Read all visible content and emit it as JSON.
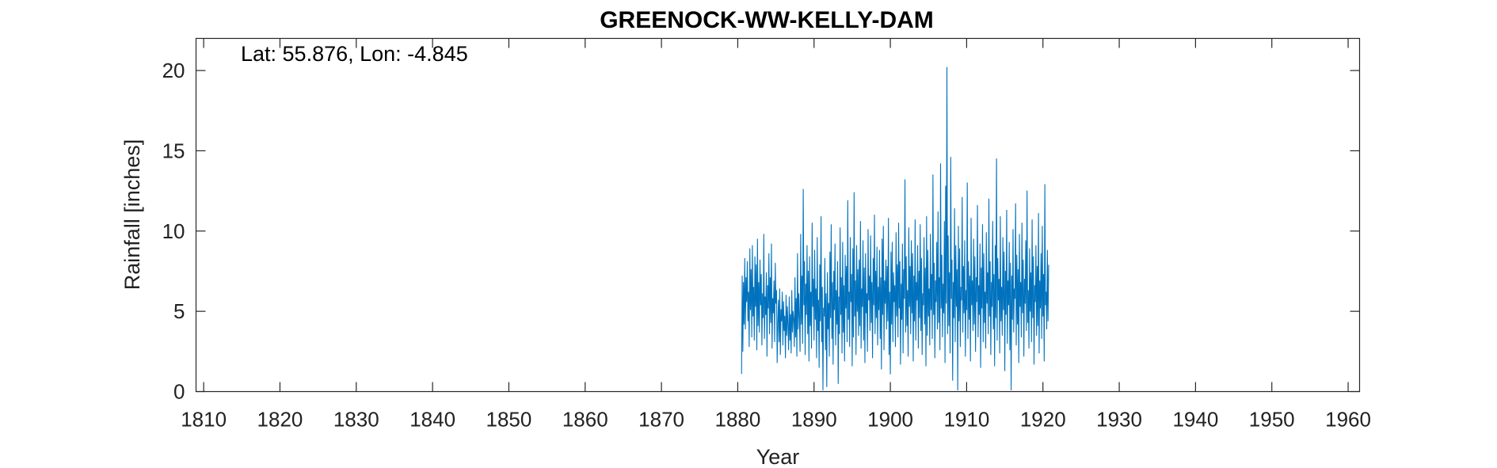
{
  "chart_data": {
    "type": "line",
    "title": "GREENOCK-WW-KELLY-DAM",
    "annotation": "Lat: 55.876, Lon: -4.845",
    "xlabel": "Year",
    "ylabel": "Rainfall [inches]",
    "xlim": [
      1809,
      1961.5
    ],
    "ylim": [
      0,
      22
    ],
    "xticks": [
      1810,
      1820,
      1830,
      1840,
      1850,
      1860,
      1870,
      1880,
      1890,
      1900,
      1910,
      1920,
      1930,
      1940,
      1950,
      1960
    ],
    "yticks": [
      0,
      5,
      10,
      15,
      20
    ],
    "grid": false,
    "series_color": "#0072BD",
    "series": [
      {
        "start_year": 1880.5,
        "step_years": 0.08333,
        "values": [
          1.1,
          7.2,
          2.5,
          6.8,
          4.2,
          8.3,
          3.9,
          7.1,
          5.6,
          8.1,
          4.4,
          6.2,
          2.8,
          8.9,
          5.1,
          7.6,
          3.4,
          9.1,
          4.7,
          6.5,
          3.2,
          8.4,
          5.3,
          7.9,
          2.6,
          9.5,
          4.1,
          6.8,
          3.7,
          8.2,
          5.4,
          7.3,
          2.9,
          6.1,
          4.6,
          9.8,
          3.3,
          5.9,
          4.8,
          7.4,
          2.2,
          6.6,
          5.2,
          8.6,
          3.6,
          7.1,
          4.3,
          9.2,
          2.7,
          5.8,
          4.9,
          6.9,
          3.1,
          8.0,
          5.5,
          6.3,
          1.8,
          4.2,
          5.7,
          3.1,
          6.4,
          2.3,
          5.1,
          4.4,
          6.2,
          2.9,
          5.6,
          3.8,
          4.7,
          2.1,
          6.0,
          3.5,
          5.3,
          4.1,
          2.6,
          5.9,
          3.2,
          4.8,
          2.4,
          6.3,
          3.7,
          5.0,
          4.5,
          2.8,
          7.1,
          3.4,
          5.8,
          2.2,
          8.6,
          3.9,
          6.1,
          4.6,
          2.5,
          9.8,
          4.2,
          7.2,
          3.0,
          12.6,
          5.4,
          8.1,
          2.3,
          6.7,
          4.8,
          9.1,
          3.6,
          7.5,
          1.9,
          8.4,
          4.1,
          6.2,
          2.7,
          10.5,
          5.3,
          7.0,
          3.2,
          8.8,
          4.5,
          6.4,
          2.1,
          9.6,
          3.8,
          5.7,
          1.5,
          7.9,
          4.4,
          10.9,
          3.1,
          6.5,
          0.1,
          5.2,
          4.7,
          8.3,
          2.6,
          6.1,
          0.3,
          7.4,
          3.9,
          5.5,
          2.2,
          8.7,
          4.6,
          10.4,
          3.3,
          6.8,
          1.7,
          7.5,
          5.1,
          9.2,
          2.9,
          6.3,
          4.2,
          8.1,
          0.5,
          5.9,
          3.6,
          10.2,
          4.8,
          7.1,
          2.4,
          9.3,
          3.7,
          6.6,
          1.9,
          8.5,
          5.2,
          7.8,
          3.1,
          11.9,
          4.5,
          6.2,
          2.8,
          9.6,
          5.6,
          7.3,
          1.6,
          8.9,
          3.4,
          12.4,
          4.7,
          6.9,
          2.3,
          9.1,
          5.0,
          7.6,
          3.5,
          8.2,
          4.1,
          10.6,
          2.7,
          6.4,
          5.3,
          9.4,
          3.2,
          7.7,
          1.8,
          8.6,
          4.9,
          6.1,
          2.5,
          10.1,
          5.7,
          7.2,
          3.8,
          9.7,
          4.3,
          6.8,
          2.1,
          8.3,
          5.4,
          11.0,
          3.6,
          7.5,
          4.6,
          9.0,
          2.9,
          6.5,
          5.1,
          8.8,
          3.3,
          7.1,
          1.4,
          9.5,
          4.8,
          10.3,
          2.6,
          6.9,
          5.5,
          8.2,
          3.9,
          7.8,
          4.4,
          10.8,
          2.3,
          6.2,
          1.1,
          8.7,
          4.2,
          9.3,
          3.1,
          7.4,
          5.6,
          6.6,
          2.8,
          9.9,
          4.7,
          7.9,
          3.4,
          10.5,
          5.2,
          8.1,
          1.7,
          6.7,
          4.5,
          9.2,
          2.4,
          7.6,
          5.8,
          13.2,
          3.7,
          8.4,
          4.1,
          6.3,
          2.2,
          10.2,
          5.3,
          7.8,
          3.6,
          9.4,
          4.9,
          8.6,
          1.9,
          7.2,
          4.4,
          10.7,
          3.2,
          6.8,
          5.7,
          9.1,
          2.7,
          7.5,
          4.6,
          10.4,
          3.8,
          8.3,
          2.3,
          6.1,
          5.4,
          9.6,
          4.2,
          7.7,
          1.6,
          10.9,
          3.5,
          8.8,
          4.7,
          6.4,
          2.9,
          9.8,
          5.1,
          7.3,
          3.3,
          13.5,
          4.8,
          8.0,
          2.1,
          6.9,
          5.6,
          9.3,
          3.9,
          11.2,
          4.3,
          7.1,
          2.6,
          14.2,
          5.2,
          8.5,
          3.4,
          6.7,
          4.9,
          10.6,
          1.8,
          12.8,
          5.5,
          20.2,
          3.6,
          9.7,
          4.1,
          7.4,
          2.4,
          14.6,
          5.8,
          8.2,
          0.7,
          6.8,
          4.6,
          11.4,
          3.1,
          9.1,
          5.3,
          7.6,
          0.1,
          10.3,
          4.4,
          8.9,
          2.8,
          6.5,
          5.7,
          12.1,
          3.7,
          7.8,
          4.9,
          9.4,
          2.2,
          6.3,
          5.1,
          13.0,
          3.3,
          8.1,
          4.5,
          7.2,
          1.9,
          10.8,
          5.4,
          6.9,
          3.8,
          9.5,
          4.2,
          8.4,
          2.5,
          7.1,
          5.6,
          11.6,
          3.4,
          6.6,
          4.8,
          9.2,
          1.5,
          7.7,
          5.2,
          10.4,
          3.1,
          8.6,
          4.3,
          6.2,
          2.7,
          9.9,
          5.5,
          7.4,
          3.6,
          12.0,
          4.7,
          8.1,
          2.3,
          6.8,
          5.3,
          10.6,
          3.9,
          7.3,
          1.6,
          9.1,
          4.6,
          14.5,
          3.2,
          8.3,
          5.7,
          7.0,
          2.4,
          10.9,
          4.4,
          6.5,
          3.5,
          9.6,
          5.1,
          8.7,
          1.3,
          7.5,
          4.8,
          11.3,
          3.0,
          6.9,
          5.4,
          9.3,
          2.6,
          8.0,
          0.1,
          7.2,
          4.5,
          10.1,
          3.7,
          6.4,
          5.8,
          11.7,
          2.9,
          8.5,
          4.2,
          7.6,
          1.8,
          9.8,
          5.3,
          6.8,
          3.4,
          10.5,
          4.9,
          8.2,
          2.2,
          7.0,
          5.5,
          9.4,
          3.8,
          12.5,
          4.3,
          6.3,
          2.7,
          8.9,
          5.0,
          7.4,
          3.1,
          10.7,
          4.6,
          8.4,
          1.7,
          6.6,
          5.6,
          9.1,
          3.5,
          7.8,
          4.1,
          11.1,
          2.4,
          6.9,
          5.2,
          8.6,
          3.3,
          10.3,
          4.7,
          7.3,
          1.9,
          12.9,
          5.4,
          6.2,
          3.9,
          8.8,
          4.4,
          7.9
        ]
      }
    ]
  }
}
